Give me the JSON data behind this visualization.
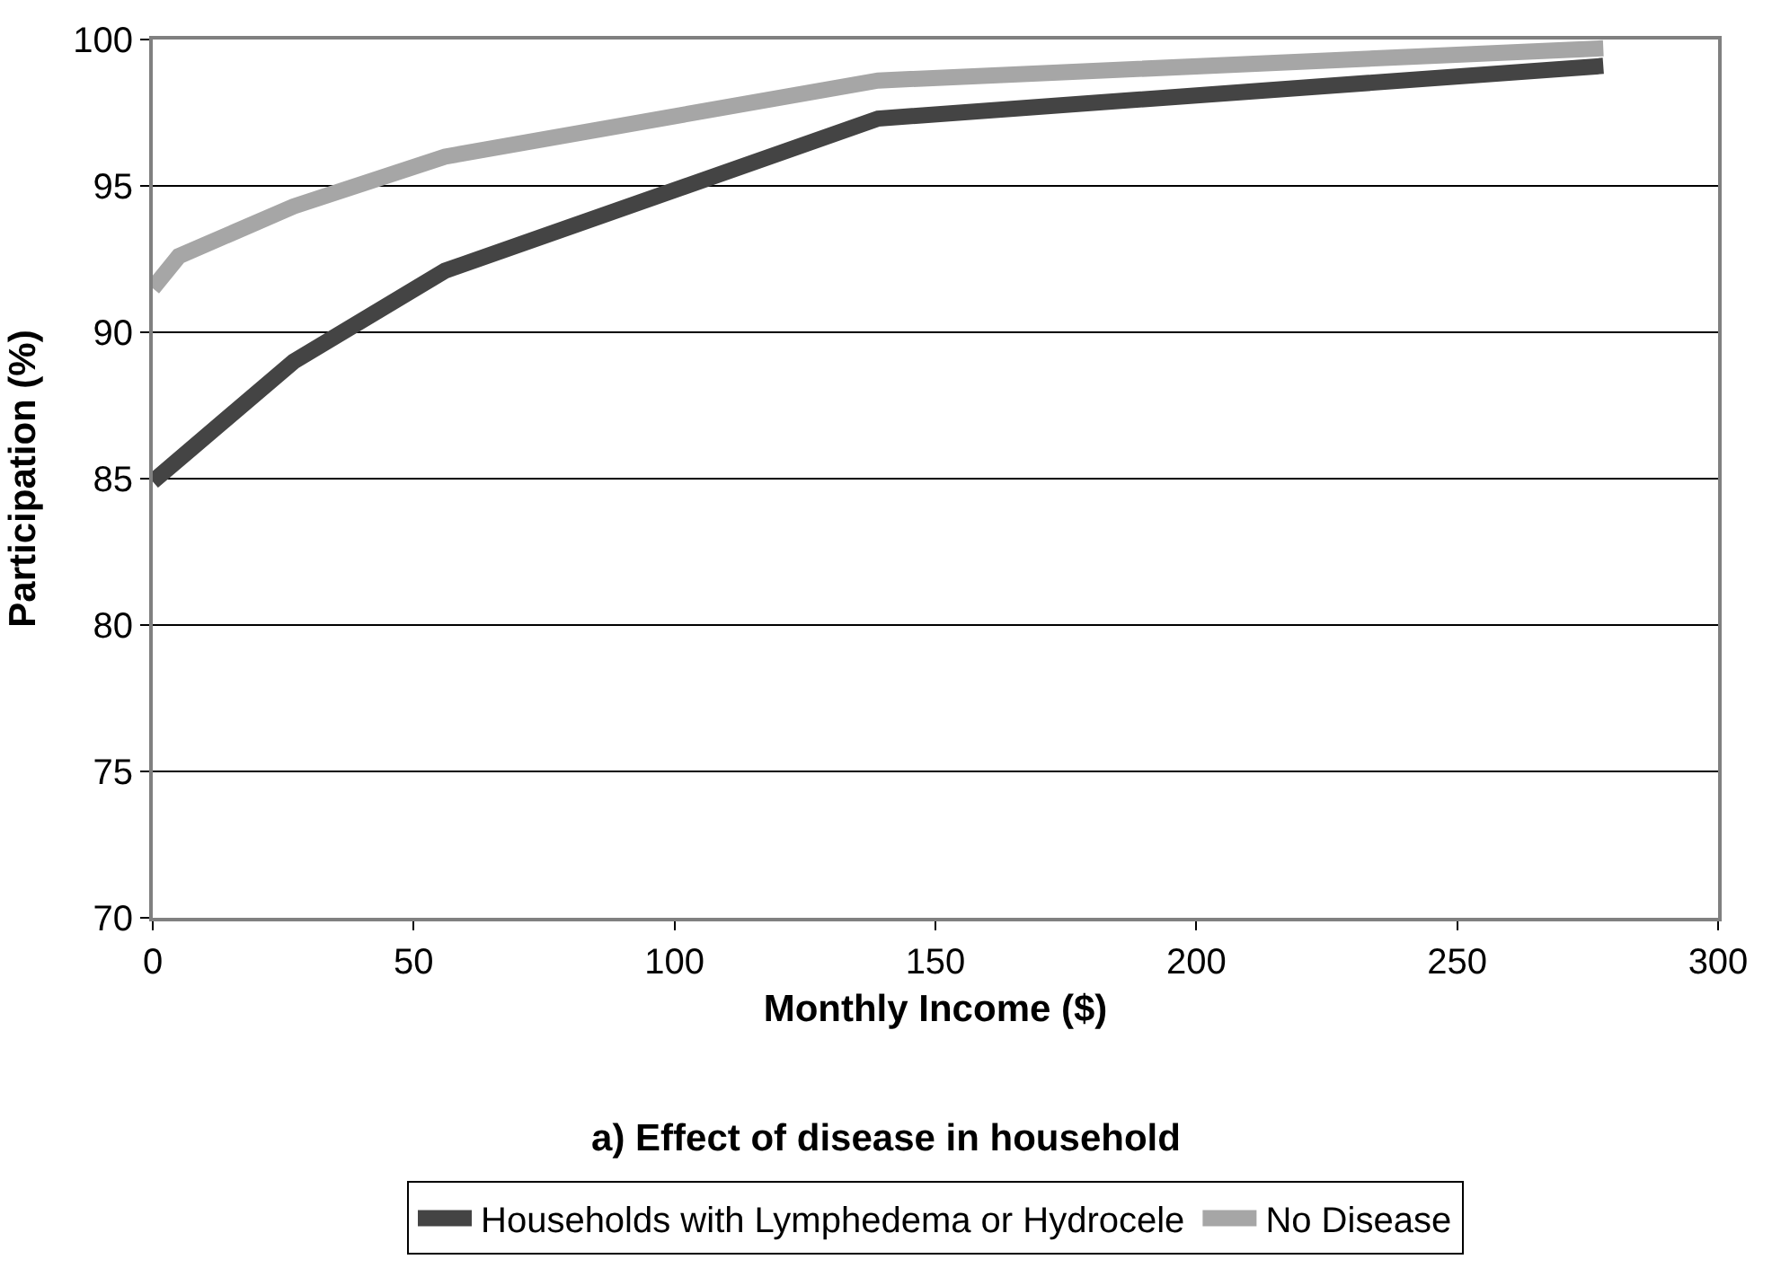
{
  "chart_data": {
    "type": "line",
    "title": "a) Effect of disease in household",
    "xlabel": "Monthly Income ($)",
    "ylabel": "Participation (%)",
    "series": [
      {
        "name": "Households with Lymphedema or Hydrocele",
        "color": "#444444",
        "x": [
          0,
          27,
          56,
          139,
          278
        ],
        "values": [
          84.9,
          89.0,
          92.1,
          97.3,
          99.1
        ]
      },
      {
        "name": "No Disease",
        "color": "#a6a6a6",
        "x": [
          0,
          5,
          27,
          56,
          139,
          278
        ],
        "values": [
          91.5,
          92.6,
          94.3,
          96.0,
          98.6,
          99.7
        ]
      }
    ],
    "xlim": [
      0,
      300
    ],
    "xticks": [
      0,
      50,
      100,
      150,
      200,
      250,
      300
    ],
    "ylim": [
      70,
      100
    ],
    "yticks": [
      70,
      75,
      80,
      85,
      90,
      95,
      100
    ],
    "grid": "y",
    "legend": "bottom",
    "marker": "none",
    "line_style": "solid"
  }
}
